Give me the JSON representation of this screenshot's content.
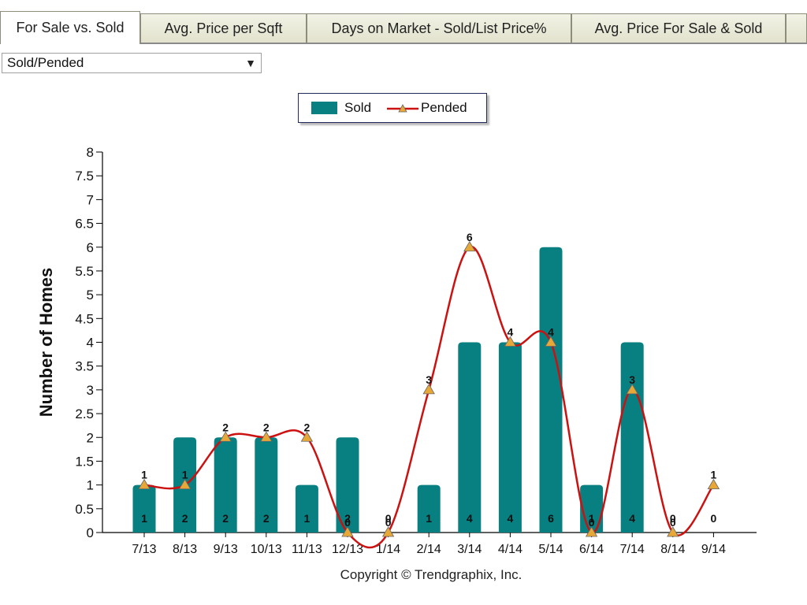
{
  "tabs": [
    {
      "label": "For Sale vs. Sold",
      "active": true
    },
    {
      "label": "Avg. Price per Sqft",
      "active": false
    },
    {
      "label": "Days on Market - Sold/List Price%",
      "active": false
    },
    {
      "label": "Avg. Price For Sale & Sold",
      "active": false
    }
  ],
  "dropdown": {
    "selected": "Sold/Pended",
    "arrow": "▼"
  },
  "legend": {
    "sold_label": "Sold",
    "pended_label": "Pended"
  },
  "copyright": "Copyright © Trendgraphix, Inc.",
  "colors": {
    "sold": "#087f80",
    "pended": "#cc1111",
    "marker": "#e8a838"
  },
  "chart_data": {
    "type": "bar",
    "categories": [
      "7/13",
      "8/13",
      "9/13",
      "10/13",
      "11/13",
      "12/13",
      "1/14",
      "2/14",
      "3/14",
      "4/14",
      "5/14",
      "6/14",
      "7/14",
      "8/14",
      "9/14"
    ],
    "ylabel": "Number of Homes",
    "ylim": [
      0,
      8
    ],
    "yticks": [
      "0",
      "0.5",
      "1",
      "1.5",
      "2",
      "2.5",
      "3",
      "3.5",
      "4",
      "4.5",
      "5",
      "5.5",
      "6",
      "6.5",
      "7",
      "7.5",
      "8"
    ],
    "legend_position": "top-center",
    "series": [
      {
        "name": "Sold",
        "type": "bar",
        "values": [
          1,
          2,
          2,
          2,
          1,
          2,
          0,
          1,
          4,
          4,
          6,
          1,
          4,
          0,
          0
        ]
      },
      {
        "name": "Pended",
        "type": "line",
        "values": [
          1,
          1,
          2,
          2,
          2,
          0,
          0,
          3,
          6,
          4,
          4,
          0,
          3,
          0,
          1
        ]
      }
    ]
  }
}
